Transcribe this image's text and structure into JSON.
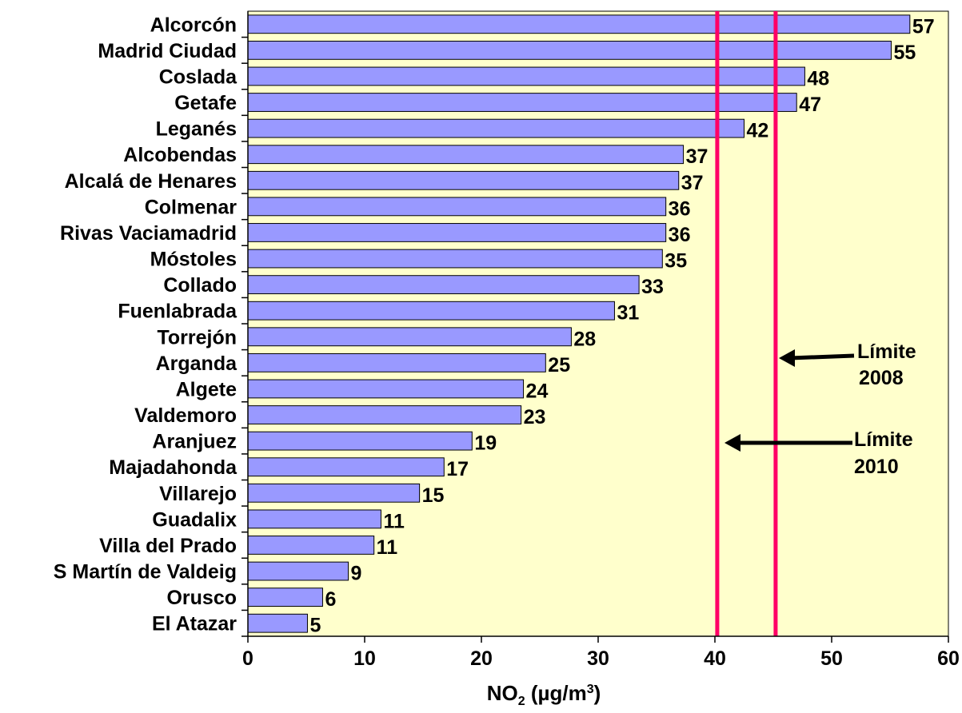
{
  "chart_data": {
    "type": "bar",
    "orientation": "horizontal",
    "categories": [
      "Alcorcón",
      "Madrid Ciudad",
      "Coslada",
      "Getafe",
      "Leganés",
      "Alcobendas",
      "Alcalá de Henares",
      "Colmenar",
      "Rivas Vaciamadrid",
      "Móstoles",
      "Collado",
      "Fuenlabrada",
      "Torrejón",
      "Arganda",
      "Algete",
      "Valdemoro",
      "Aranjuez",
      "Majadahonda",
      "Villarejo",
      "Guadalix",
      "Villa del Prado",
      "S Martín de Valdeig",
      "Orusco",
      "El Atazar"
    ],
    "values": [
      56.7,
      55.1,
      47.7,
      47.0,
      42.5,
      37.3,
      36.9,
      35.8,
      35.8,
      35.5,
      33.5,
      31.4,
      27.7,
      25.5,
      23.6,
      23.4,
      19.2,
      16.8,
      14.7,
      11.4,
      10.8,
      8.6,
      6.4,
      5.1
    ],
    "value_labels": [
      "57",
      "55",
      "48",
      "47",
      "42",
      "37",
      "37",
      "36",
      "36",
      "35",
      "33",
      "31",
      "28",
      "25",
      "24",
      "23",
      "19",
      "17",
      "15",
      "11",
      "11",
      "9",
      "6",
      "5"
    ],
    "xlabel": {
      "base": "NO",
      "sub": "2",
      "unit_open": " (µg/m",
      "sup": "3",
      "unit_close": ")"
    },
    "xlim": [
      0,
      60
    ],
    "xticks": [
      0,
      10,
      20,
      30,
      40,
      50,
      60
    ],
    "grid": false,
    "bar_color": "#9999ff",
    "plot_background": "#ffffcc",
    "reference_lines": [
      {
        "value": 40.2,
        "color": "#ff0066",
        "label_line1": "Límite",
        "label_line2": "2010"
      },
      {
        "value": 45.2,
        "color": "#ff0066",
        "label_line1": "Límite",
        "label_line2": "2008"
      }
    ]
  }
}
